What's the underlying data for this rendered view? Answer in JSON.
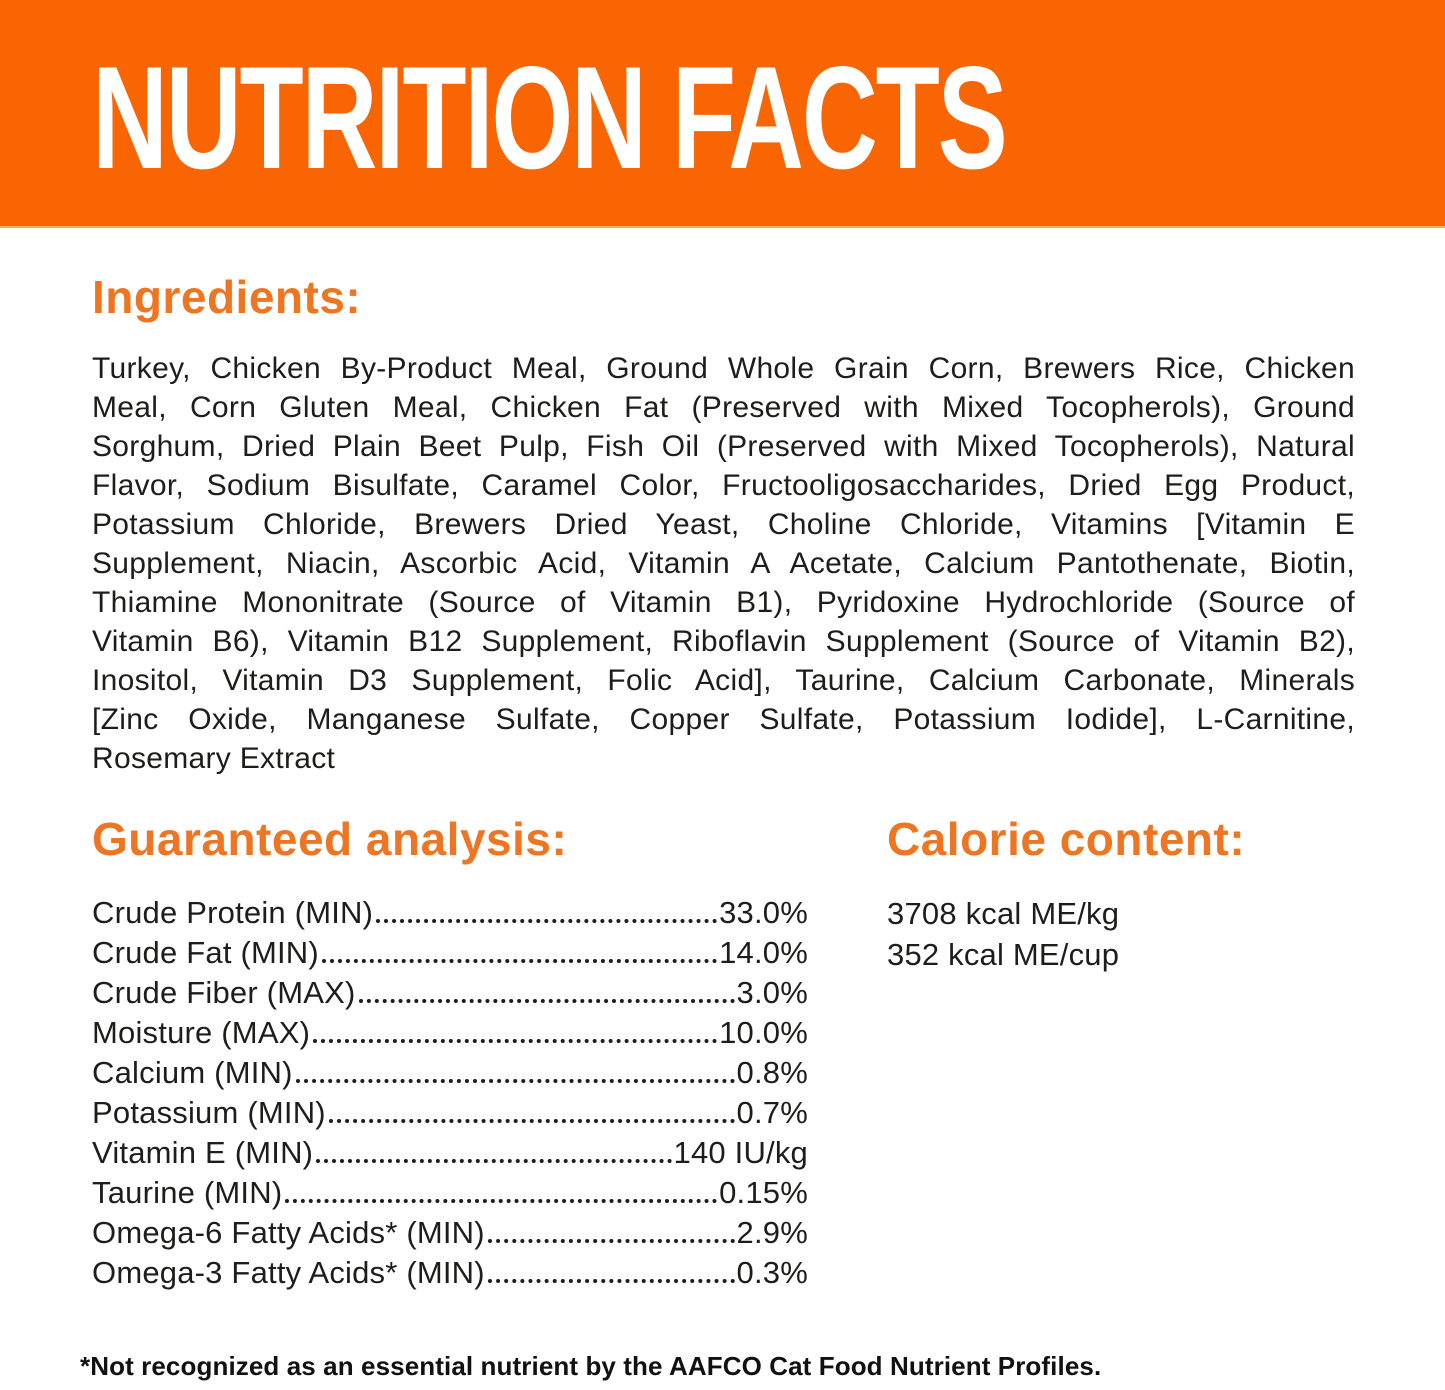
{
  "banner": {
    "title": "NUTRITION FACTS",
    "bg_color": "#FA6503",
    "text_color": "#FFFFFF"
  },
  "accent_color": "#EE7623",
  "body_text_color": "#1D1D1B",
  "ingredients": {
    "heading": "Ingredients:",
    "lines": [
      "Turkey, Chicken By-Product Meal, Ground Whole Grain Corn, Brewers Rice, Chicken",
      "Meal, Corn Gluten Meal, Chicken Fat (Preserved with Mixed Tocopherols), Ground",
      "Sorghum, Dried Plain Beet Pulp, Fish Oil (Preserved with Mixed Tocopherols), Natural",
      "Flavor, Sodium Bisulfate, Caramel Color, Fructooligosaccharides, Dried Egg Product,",
      "Potassium Chloride, Brewers Dried Yeast, Choline Chloride, Vitamins [Vitamin E",
      "Supplement, Niacin, Ascorbic Acid, Vitamin A Acetate, Calcium Pantothenate, Biotin,",
      "Thiamine Mononitrate (Source of Vitamin B1), Pyridoxine Hydrochloride (Source of",
      "Vitamin B6), Vitamin B12 Supplement, Riboflavin Supplement (Source of Vitamin B2),",
      "Inositol, Vitamin D3 Supplement, Folic Acid], Taurine, Calcium Carbonate, Minerals",
      "[Zinc Oxide, Manganese Sulfate, Copper Sulfate, Potassium Iodide], L-Carnitine,",
      "Rosemary Extract"
    ]
  },
  "guaranteed_analysis": {
    "heading": "Guaranteed analysis:",
    "rows": [
      {
        "label": "Crude Protein (MIN)",
        "value": "33.0%"
      },
      {
        "label": "Crude Fat (MIN)",
        "value": "14.0%"
      },
      {
        "label": "Crude Fiber (MAX)",
        "value": "3.0%"
      },
      {
        "label": "Moisture (MAX)",
        "value": "10.0%"
      },
      {
        "label": "Calcium (MIN)",
        "value": "0.8%"
      },
      {
        "label": "Potassium (MIN)",
        "value": "0.7%"
      },
      {
        "label": "Vitamin E (MIN)",
        "value": "140 IU/kg"
      },
      {
        "label": "Taurine (MIN)",
        "value": "0.15%"
      },
      {
        "label": "Omega-6 Fatty Acids* (MIN)",
        "value": "2.9%"
      },
      {
        "label": "Omega-3 Fatty Acids* (MIN)",
        "value": "0.3%"
      }
    ]
  },
  "calorie_content": {
    "heading": "Calorie content:",
    "lines": [
      "3708 kcal ME/kg",
      "352 kcal ME/cup"
    ]
  },
  "footnote": "*Not recognized as an essential nutrient by the AAFCO Cat Food Nutrient Profiles."
}
